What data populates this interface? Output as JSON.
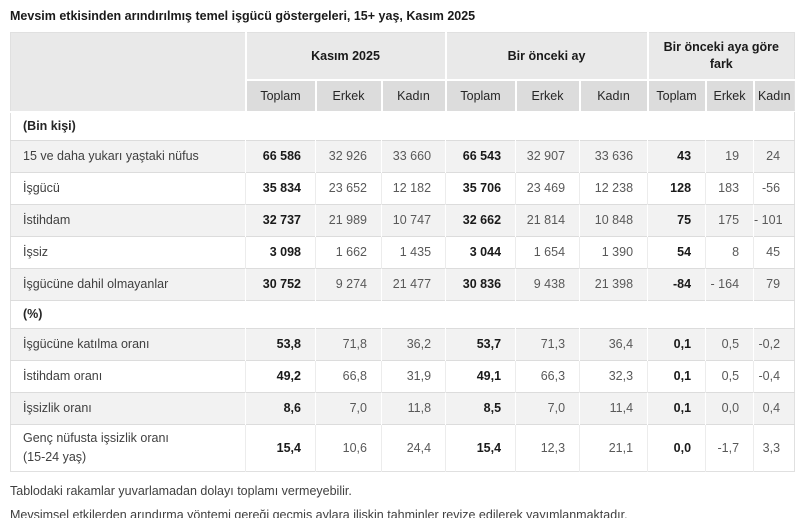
{
  "title": "Mevsim etkisinden arındırılmış temel işgücü göstergeleri, 15+ yaş, Kasım 2025",
  "colors": {
    "header_bg": "#e9e9e9",
    "subheader_bg": "#dcdcdc",
    "row_alt_bg": "#f2f2f2",
    "border": "#dcdcdc",
    "text_primary": "#1a1a1a",
    "text_secondary": "#595959"
  },
  "chart_data": {
    "type": "table",
    "title": "Mevsim etkisinden arındırılmış temel işgücü göstergeleri, 15+ yaş, Kasım 2025",
    "column_groups": [
      "Kasım 2025",
      "Bir önceki ay",
      "Bir önceki aya göre fark"
    ],
    "sub_columns": [
      "Toplam",
      "Erkek",
      "Kadın"
    ],
    "sections": [
      {
        "header": "(Bin kişi)",
        "rows": [
          {
            "label": "15 ve daha yukarı yaştaki nüfus",
            "values": [
              "66 586",
              "32 926",
              "33 660",
              "66 543",
              "32 907",
              "33 636",
              "43",
              "19",
              "24"
            ]
          },
          {
            "label": "İşgücü",
            "values": [
              "35 834",
              "23 652",
              "12 182",
              "35 706",
              "23 469",
              "12 238",
              "128",
              "183",
              "-56"
            ]
          },
          {
            "label": "İstihdam",
            "values": [
              "32 737",
              "21 989",
              "10 747",
              "32 662",
              "21 814",
              "10 848",
              "75",
              "175",
              "- 101"
            ]
          },
          {
            "label": "İşsiz",
            "values": [
              "3 098",
              "1 662",
              "1 435",
              "3 044",
              "1 654",
              "1 390",
              "54",
              "8",
              "45"
            ]
          },
          {
            "label": "İşgücüne dahil olmayanlar",
            "values": [
              "30 752",
              "9 274",
              "21 477",
              "30 836",
              "9 438",
              "21 398",
              "-84",
              "- 164",
              "79"
            ]
          }
        ]
      },
      {
        "header": "(%)",
        "rows": [
          {
            "label": "İşgücüne katılma oranı",
            "values": [
              "53,8",
              "71,8",
              "36,2",
              "53,7",
              "71,3",
              "36,4",
              "0,1",
              "0,5",
              "-0,2"
            ]
          },
          {
            "label": "İstihdam oranı",
            "values": [
              "49,2",
              "66,8",
              "31,9",
              "49,1",
              "66,3",
              "32,3",
              "0,1",
              "0,5",
              "-0,4"
            ]
          },
          {
            "label": "İşsizlik oranı",
            "values": [
              "8,6",
              "7,0",
              "11,8",
              "8,5",
              "7,0",
              "11,4",
              "0,1",
              "0,0",
              "0,4"
            ]
          },
          {
            "label": "Genç nüfusta işsizlik oranı",
            "label_line2": "(15-24 yaş)",
            "values": [
              "15,4",
              "10,6",
              "24,4",
              "15,4",
              "12,3",
              "21,1",
              "0,0",
              "-1,7",
              "3,3"
            ]
          }
        ]
      }
    ],
    "footnotes": [
      "Tablodaki rakamlar yuvarlamadan dolayı toplamı vermeyebilir.",
      "Mevsimsel etkilerden arındırma yöntemi gereği geçmiş aylara ilişkin tahminler revize edilerek yayımlanmaktadır."
    ]
  }
}
